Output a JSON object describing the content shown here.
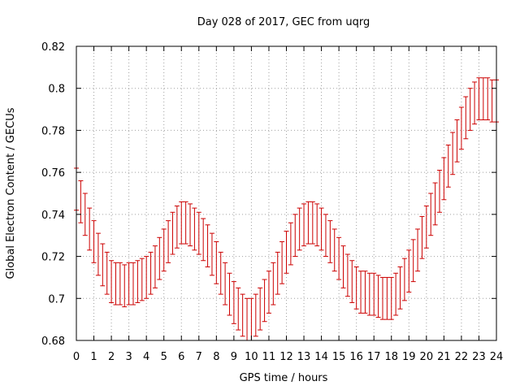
{
  "chart_data": {
    "type": "scatter",
    "title": "Day 028 of 2017, GEC from uqrg",
    "xlabel": "GPS time / hours",
    "ylabel": "Global Electron Content / GECUs",
    "xlim": [
      0,
      24
    ],
    "ylim": [
      0.68,
      0.82
    ],
    "xticks": [
      0,
      1,
      2,
      3,
      4,
      5,
      6,
      7,
      8,
      9,
      10,
      11,
      12,
      13,
      14,
      15,
      16,
      17,
      18,
      19,
      20,
      21,
      22,
      23,
      24
    ],
    "yticks": [
      0.68,
      0.7,
      0.72,
      0.74,
      0.76,
      0.78,
      0.8,
      0.82
    ],
    "ytick_labels": [
      "0.68",
      "0.7",
      "0.72",
      "0.74",
      "0.76",
      "0.78",
      "0.8",
      "0.82"
    ],
    "grid": true,
    "legend": "none",
    "colors": {
      "series": "#cc0000",
      "grid": "#a0a0a0",
      "axis": "#000000"
    },
    "series": [
      {
        "error_bar": 0.01,
        "x": [
          0,
          0.25,
          0.5,
          0.75,
          1,
          1.25,
          1.5,
          1.75,
          2,
          2.25,
          2.5,
          2.75,
          3,
          3.25,
          3.5,
          3.75,
          4,
          4.25,
          4.5,
          4.75,
          5,
          5.25,
          5.5,
          5.75,
          6,
          6.25,
          6.5,
          6.75,
          7,
          7.25,
          7.5,
          7.75,
          8,
          8.25,
          8.5,
          8.75,
          9,
          9.25,
          9.5,
          9.75,
          10,
          10.25,
          10.5,
          10.75,
          11,
          11.25,
          11.5,
          11.75,
          12,
          12.25,
          12.5,
          12.75,
          13,
          13.25,
          13.5,
          13.75,
          14,
          14.25,
          14.5,
          14.75,
          15,
          15.25,
          15.5,
          15.75,
          16,
          16.25,
          16.5,
          16.75,
          17,
          17.25,
          17.5,
          17.75,
          18,
          18.25,
          18.5,
          18.75,
          19,
          19.25,
          19.5,
          19.75,
          20,
          20.25,
          20.5,
          20.75,
          21,
          21.25,
          21.5,
          21.75,
          22,
          22.25,
          22.5,
          22.75,
          23,
          23.25,
          23.5,
          23.75,
          24
        ],
        "y": [
          0.752,
          0.746,
          0.74,
          0.733,
          0.727,
          0.721,
          0.716,
          0.712,
          0.708,
          0.707,
          0.707,
          0.706,
          0.707,
          0.707,
          0.708,
          0.709,
          0.71,
          0.712,
          0.715,
          0.719,
          0.723,
          0.727,
          0.731,
          0.734,
          0.736,
          0.736,
          0.735,
          0.733,
          0.731,
          0.728,
          0.725,
          0.721,
          0.717,
          0.712,
          0.707,
          0.702,
          0.698,
          0.695,
          0.692,
          0.69,
          0.69,
          0.692,
          0.695,
          0.699,
          0.703,
          0.707,
          0.712,
          0.717,
          0.722,
          0.726,
          0.73,
          0.733,
          0.735,
          0.736,
          0.736,
          0.735,
          0.733,
          0.73,
          0.727,
          0.723,
          0.719,
          0.715,
          0.711,
          0.708,
          0.705,
          0.703,
          0.703,
          0.702,
          0.702,
          0.701,
          0.7,
          0.7,
          0.7,
          0.702,
          0.705,
          0.709,
          0.713,
          0.718,
          0.723,
          0.729,
          0.734,
          0.74,
          0.745,
          0.751,
          0.757,
          0.763,
          0.769,
          0.775,
          0.781,
          0.786,
          0.79,
          0.793,
          0.795,
          0.795,
          0.795,
          0.794,
          0.794
        ]
      }
    ]
  }
}
